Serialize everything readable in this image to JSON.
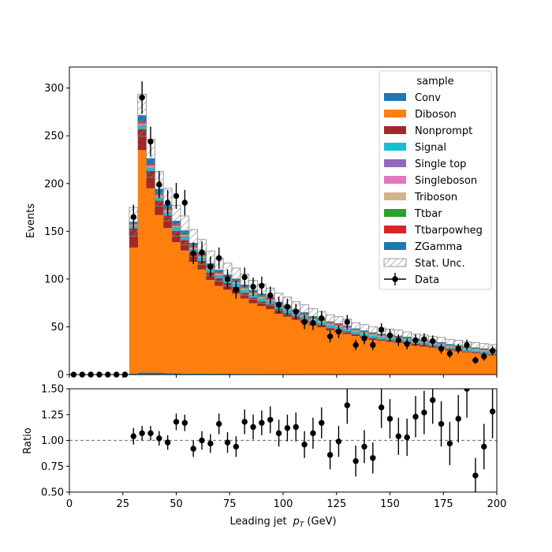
{
  "chart_data": [
    {
      "type": "bar",
      "stacked": true,
      "xlabel_prefix": "Leading jet",
      "xlabel_var": "p",
      "xlabel_sub": "T",
      "xlabel_unit": "(GeV)",
      "ylabel": "Events",
      "xlim": [
        0,
        200
      ],
      "ylim": [
        0,
        322
      ],
      "xticks": [
        0,
        25,
        50,
        75,
        100,
        125,
        150,
        175,
        200
      ],
      "yticks": [
        0,
        50,
        100,
        150,
        200,
        250,
        300
      ],
      "bin_edges": [
        0,
        4,
        8,
        12,
        16,
        20,
        24,
        28,
        32,
        36,
        40,
        44,
        48,
        52,
        56,
        60,
        64,
        68,
        72,
        76,
        80,
        84,
        88,
        92,
        96,
        100,
        104,
        108,
        112,
        116,
        120,
        124,
        128,
        132,
        136,
        140,
        144,
        148,
        152,
        156,
        160,
        164,
        168,
        172,
        176,
        180,
        184,
        188,
        192,
        196,
        200
      ],
      "legend_title": "sample",
      "legend_position": "upper right",
      "series": [
        {
          "name": "Conv",
          "color": "#1f77b4",
          "values": [
            0,
            0,
            0,
            0,
            0,
            0,
            0,
            1,
            2,
            2,
            2,
            1.5,
            1.5,
            1,
            1,
            1,
            1,
            0.8,
            0.8,
            0.7,
            0.6,
            0.6,
            0.6,
            0.5,
            0.5,
            0.5,
            0.4,
            0.4,
            0.4,
            0.4,
            0.3,
            0.3,
            0.3,
            0.3,
            0.3,
            0.3,
            0.3,
            0.3,
            0.2,
            0.2,
            0.2,
            0.2,
            0.2,
            0.2,
            0.2,
            0.2,
            0.2,
            0.2,
            0.2,
            0.2
          ]
        },
        {
          "name": "Diboson",
          "color": "#ff7f0e",
          "values": [
            0,
            0,
            0,
            0,
            0,
            0,
            0,
            132,
            233,
            193,
            165,
            152,
            137,
            129,
            117,
            109,
            98,
            92,
            88,
            84,
            79,
            74,
            71,
            68,
            63,
            60,
            57,
            54,
            51,
            49,
            46,
            44,
            42,
            40,
            38,
            36,
            35,
            34,
            33,
            32,
            30,
            29,
            28,
            27,
            25,
            24,
            23,
            22,
            21,
            20
          ]
        },
        {
          "name": "Nonprompt",
          "color": "#a0292a",
          "values": [
            0,
            0,
            0,
            0,
            0,
            0,
            0,
            20,
            22,
            18,
            15,
            13,
            12,
            11,
            10,
            9,
            8,
            8,
            7,
            7,
            6,
            6,
            5,
            5,
            5,
            4,
            4,
            4,
            3,
            3,
            3,
            3,
            3,
            2,
            2,
            2,
            2,
            2,
            2,
            2,
            2,
            2,
            1.5,
            1.5,
            1.5,
            1.5,
            1,
            1,
            1,
            1
          ]
        },
        {
          "name": "Signal",
          "color": "#17becf",
          "values": [
            0,
            0,
            0,
            0,
            0,
            0,
            0,
            2,
            3,
            3,
            3,
            3,
            3,
            3,
            3,
            3,
            3,
            3,
            3,
            3,
            3,
            3,
            3,
            3,
            3,
            3,
            2.5,
            2.5,
            2.5,
            2.5,
            2.5,
            2.5,
            2.5,
            2.5,
            2.5,
            2.5,
            2,
            2,
            2,
            2,
            2,
            2,
            2,
            2,
            2,
            2,
            2,
            2,
            2,
            2
          ]
        },
        {
          "name": "Single top",
          "color": "#9467bd",
          "values": [
            0,
            0,
            0,
            0,
            0,
            0,
            0,
            0.5,
            0.5,
            0.5,
            0.5,
            0.5,
            0.5,
            0.5,
            0.4,
            0.4,
            0.4,
            0.4,
            0.4,
            0.3,
            0.3,
            0.3,
            0.3,
            0.3,
            0.3,
            0.3,
            0.3,
            0.3,
            0.2,
            0.2,
            0.2,
            0.2,
            0.2,
            0.2,
            0.2,
            0.2,
            0.2,
            0.2,
            0.2,
            0.2,
            0.2,
            0.2,
            0.2,
            0.2,
            0.2,
            0.2,
            0.2,
            0.2,
            0.2,
            0.2
          ]
        },
        {
          "name": "Singleboson",
          "color": "#e377c2",
          "values": [
            0,
            0,
            0,
            0,
            0,
            0,
            0,
            1,
            1.5,
            1.5,
            1.5,
            1.5,
            1,
            1,
            1,
            1,
            1,
            1,
            1,
            1,
            0.8,
            0.8,
            0.8,
            0.8,
            0.8,
            0.7,
            0.7,
            0.7,
            0.7,
            0.6,
            0.6,
            0.6,
            0.6,
            0.6,
            0.5,
            0.5,
            0.5,
            0.5,
            0.5,
            0.5,
            0.5,
            0.5,
            0.5,
            0.5,
            0.5,
            0.5,
            0.5,
            0.5,
            0.5,
            0.5
          ]
        },
        {
          "name": "Triboson",
          "color": "#d2b48c",
          "values": [
            0,
            0,
            0,
            0,
            0,
            0,
            0,
            0.5,
            0.5,
            0.5,
            0.5,
            0.5,
            0.5,
            0.5,
            0.5,
            0.5,
            0.5,
            0.5,
            0.5,
            0.5,
            0.5,
            0.5,
            0.5,
            0.5,
            0.5,
            0.5,
            0.5,
            0.5,
            0.5,
            0.5,
            0.5,
            0.5,
            0.5,
            0.5,
            0.5,
            0.5,
            0.5,
            0.5,
            0.5,
            0.5,
            0.5,
            0.5,
            0.5,
            0.5,
            0.5,
            0.5,
            0.5,
            0.5,
            0.5,
            0.5
          ]
        },
        {
          "name": "Ttbar",
          "color": "#2ca02c",
          "values": [
            0,
            0,
            0,
            0,
            0,
            0,
            0,
            0.5,
            1,
            1,
            1,
            1,
            1,
            1,
            1,
            1,
            1,
            1,
            1,
            1,
            1,
            1,
            1,
            1,
            0.8,
            0.8,
            0.8,
            0.8,
            0.8,
            0.8,
            0.8,
            0.8,
            0.6,
            0.6,
            0.6,
            0.6,
            0.6,
            0.6,
            0.6,
            0.6,
            0.5,
            0.5,
            0.5,
            0.5,
            0.5,
            0.5,
            0.5,
            0.5,
            0.5,
            0.5
          ]
        },
        {
          "name": "Ttbarpowheg",
          "color": "#d62728",
          "values": [
            0,
            0,
            0,
            0,
            0,
            0,
            0,
            0.5,
            1,
            1,
            1,
            1,
            1,
            1,
            1,
            1,
            1,
            1,
            1,
            1,
            1,
            1,
            1,
            1,
            0.8,
            0.8,
            0.8,
            0.8,
            0.8,
            0.8,
            0.8,
            0.8,
            0.6,
            0.6,
            0.6,
            0.6,
            0.6,
            0.6,
            0.6,
            0.6,
            0.5,
            0.5,
            0.5,
            0.5,
            0.5,
            0.5,
            0.5,
            0.5,
            0.5,
            0.5
          ]
        },
        {
          "name": "ZGamma",
          "color": "#1f77b4",
          "values": [
            0,
            0,
            0,
            0,
            0,
            0,
            0,
            2,
            7,
            6,
            5,
            4,
            3.5,
            3,
            3,
            2.5,
            2.5,
            2,
            2,
            2,
            2,
            1.5,
            1.5,
            1.5,
            1.5,
            1.5,
            1.2,
            1.2,
            1.2,
            1.2,
            1,
            1,
            1,
            1,
            1,
            1,
            1,
            1,
            1,
            1,
            1,
            1,
            1,
            1,
            1,
            1,
            1,
            1,
            1,
            1
          ]
        }
      ],
      "stat_unc_label": "Stat. Unc.",
      "stat_unc": [
        0,
        0,
        0,
        0,
        0,
        0,
        0,
        15,
        22,
        20,
        18,
        17,
        16,
        15,
        14,
        13,
        13,
        12,
        12,
        11,
        11,
        10,
        10,
        9,
        9,
        9,
        8,
        8,
        8,
        7,
        7,
        7,
        7,
        6,
        6,
        6,
        6,
        6,
        6,
        5,
        5,
        5,
        5,
        5,
        5,
        5,
        5,
        5,
        5,
        5
      ],
      "data_label": "Data",
      "data": {
        "x": [
          2,
          6,
          10,
          14,
          18,
          22,
          26,
          30,
          34,
          38,
          42,
          46,
          50,
          54,
          58,
          62,
          66,
          70,
          74,
          78,
          82,
          86,
          90,
          94,
          98,
          102,
          106,
          110,
          114,
          118,
          122,
          126,
          130,
          134,
          138,
          142,
          146,
          150,
          154,
          158,
          162,
          166,
          170,
          174,
          178,
          182,
          186,
          190,
          194,
          198
        ],
        "y": [
          0,
          0,
          0,
          0,
          0,
          0,
          0,
          165,
          290,
          244,
          199,
          180,
          187,
          180,
          127,
          128,
          113,
          122,
          100,
          89,
          102,
          92,
          93,
          83,
          73,
          71,
          66,
          55,
          54,
          59,
          40,
          45,
          55,
          31,
          38,
          31,
          47,
          41,
          36,
          32,
          36,
          37,
          35,
          27,
          22,
          27,
          31,
          15,
          19,
          25
        ]
      }
    },
    {
      "type": "scatter",
      "ylabel": "Ratio",
      "xlim": [
        0,
        200
      ],
      "ylim": [
        0.5,
        1.5
      ],
      "xticks": [
        0,
        25,
        50,
        75,
        100,
        125,
        150,
        175,
        200
      ],
      "yticks": [
        0.5,
        0.75,
        1.0,
        1.25,
        1.5
      ],
      "ytick_labels": [
        "0.50",
        "0.75",
        "1.00",
        "1.25",
        "1.50"
      ],
      "reference_line": 1.0,
      "x": [
        30,
        34,
        38,
        42,
        46,
        50,
        54,
        58,
        62,
        66,
        70,
        74,
        78,
        82,
        86,
        90,
        94,
        98,
        102,
        106,
        110,
        114,
        118,
        122,
        126,
        130,
        134,
        138,
        142,
        146,
        150,
        154,
        158,
        162,
        166,
        170,
        174,
        178,
        182,
        186,
        190,
        194,
        198
      ],
      "y": [
        1.04,
        1.07,
        1.07,
        1.02,
        0.98,
        1.18,
        1.17,
        0.92,
        1.0,
        0.97,
        1.16,
        0.98,
        0.94,
        1.18,
        1.13,
        1.17,
        1.2,
        1.07,
        1.12,
        1.13,
        0.96,
        1.07,
        1.17,
        0.86,
        0.99,
        1.34,
        0.8,
        0.94,
        0.83,
        1.32,
        1.21,
        1.04,
        1.03,
        1.23,
        1.27,
        1.39,
        1.16,
        0.97,
        1.21,
        1.5,
        0.66,
        0.94,
        1.28
      ],
      "err": [
        0.08,
        0.07,
        0.07,
        0.07,
        0.07,
        0.08,
        0.08,
        0.08,
        0.09,
        0.09,
        0.1,
        0.1,
        0.1,
        0.12,
        0.12,
        0.12,
        0.13,
        0.13,
        0.13,
        0.14,
        0.13,
        0.15,
        0.15,
        0.14,
        0.15,
        0.18,
        0.15,
        0.16,
        0.15,
        0.2,
        0.19,
        0.18,
        0.18,
        0.2,
        0.21,
        0.23,
        0.22,
        0.21,
        0.23,
        0.28,
        0.17,
        0.22,
        0.26
      ]
    }
  ]
}
